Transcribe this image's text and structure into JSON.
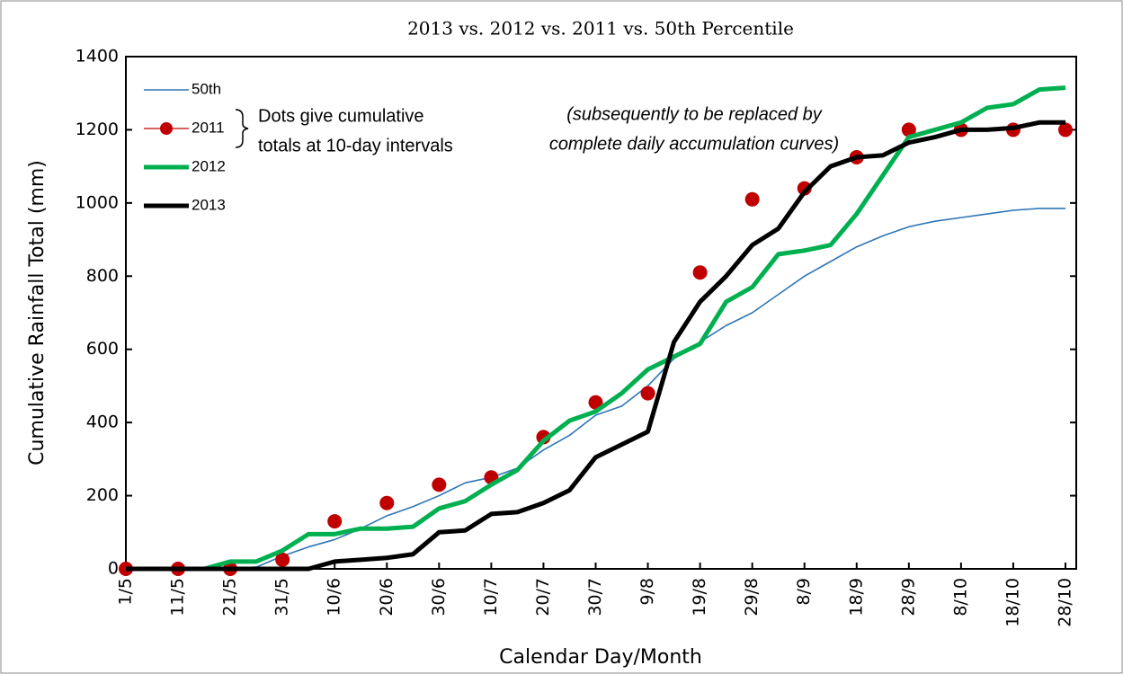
{
  "chart_data": {
    "type": "line",
    "title": "2013 vs. 2012 vs. 2011 vs. 50th Percentile",
    "x_label": "Calendar Day/Month",
    "y_label": "Cumulative Rainfall Total (mm)",
    "categories": [
      "1/5",
      null,
      "11/5",
      null,
      "21/5",
      null,
      "31/5",
      null,
      "10/6",
      null,
      "20/6",
      null,
      "30/6",
      null,
      "10/7",
      null,
      "20/7",
      null,
      "30/7",
      null,
      "9/8",
      null,
      "19/8",
      null,
      "29/8",
      null,
      "8/9",
      null,
      "18/9",
      null,
      "28/9",
      null,
      "8/10",
      null,
      "18/10",
      null,
      "28/10"
    ],
    "series": [
      {
        "name": "50th",
        "color": "#2e75b6",
        "width": 1.6,
        "mode": "line",
        "values": [
          0,
          0,
          0,
          0,
          0,
          5,
          35,
          60,
          80,
          110,
          145,
          170,
          200,
          235,
          250,
          275,
          325,
          365,
          420,
          445,
          500,
          575,
          620,
          665,
          700,
          750,
          800,
          840,
          880,
          910,
          935,
          950,
          960,
          970,
          980,
          985,
          985
        ]
      },
      {
        "name": "2011",
        "color": "#c00000",
        "width": 1.2,
        "mode": "markers",
        "values": [
          0,
          null,
          0,
          null,
          0,
          null,
          25,
          null,
          130,
          null,
          180,
          null,
          230,
          null,
          250,
          null,
          360,
          null,
          455,
          null,
          480,
          null,
          810,
          null,
          1010,
          null,
          1040,
          null,
          1125,
          null,
          1200,
          null,
          1200,
          null,
          1200,
          null,
          1200
        ]
      },
      {
        "name": "2012",
        "color": "#00b050",
        "width": 5,
        "mode": "line",
        "values": [
          0,
          0,
          0,
          0,
          20,
          20,
          50,
          95,
          95,
          110,
          110,
          115,
          165,
          185,
          230,
          270,
          350,
          405,
          430,
          480,
          545,
          580,
          615,
          730,
          770,
          860,
          870,
          885,
          970,
          1075,
          1180,
          1200,
          1220,
          1260,
          1270,
          1310,
          1315
        ]
      },
      {
        "name": "2013",
        "color": "#000000",
        "width": 5,
        "mode": "line",
        "values": [
          0,
          0,
          0,
          0,
          0,
          0,
          0,
          0,
          20,
          25,
          30,
          40,
          100,
          105,
          150,
          155,
          180,
          215,
          305,
          340,
          375,
          620,
          730,
          800,
          885,
          930,
          1030,
          1100,
          1125,
          1130,
          1165,
          1180,
          1200,
          1200,
          1205,
          1220,
          1220
        ]
      }
    ],
    "ylim": [
      0,
      1400
    ],
    "yticks": [
      0,
      200,
      400,
      600,
      800,
      1000,
      1200,
      1400
    ],
    "annotations": [
      [
        "Dots give cumulative",
        "totals at 10-day intervals"
      ],
      [
        "(subsequently to be replaced by",
        "complete daily accumulation curves)"
      ]
    ],
    "legend": "upper left"
  }
}
